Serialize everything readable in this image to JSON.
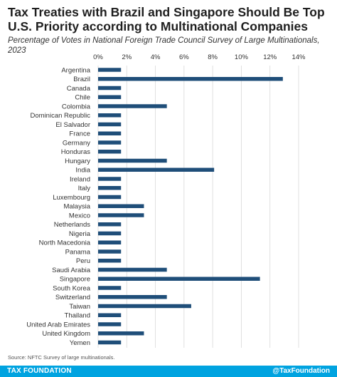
{
  "title": "Tax Treaties with Brazil and Singapore Should Be Top U.S. Priority according to Multinational Companies",
  "subtitle": "Percentage of Votes in National Foreign Trade Council Survey of Large Multinationals, 2023",
  "source": "Source: NFTC Survey of large multinationals.",
  "footer": {
    "brand": "TAX FOUNDATION",
    "handle": "@TaxFoundation"
  },
  "colors": {
    "bar": "#1f4e79",
    "grid": "#d9d9d9",
    "footer": "#00a3e0"
  },
  "chart_data": {
    "type": "bar",
    "orientation": "horizontal",
    "title": "Tax Treaties with Brazil and Singapore Should Be Top U.S. Priority according to Multinational Companies",
    "subtitle": "Percentage of Votes in National Foreign Trade Council Survey of Large Multinationals, 2023",
    "xlim": [
      0,
      14
    ],
    "ticks": [
      0,
      2,
      4,
      6,
      8,
      10,
      12,
      14
    ],
    "tick_labels": [
      "0%",
      "2%",
      "4%",
      "6%",
      "8%",
      "10%",
      "12%",
      "14%"
    ],
    "grid": true,
    "categories": [
      "Argentina",
      "Brazil",
      "Canada",
      "Chile",
      "Colombia",
      "Dominican Republic",
      "El Salvador",
      "France",
      "Germany",
      "Honduras",
      "Hungary",
      "India",
      "Ireland",
      "Italy",
      "Luxembourg",
      "Malaysia",
      "Mexico",
      "Netherlands",
      "Nigeria",
      "North Macedonia",
      "Panama",
      "Peru",
      "Saudi Arabia",
      "Singapore",
      "South Korea",
      "Switzerland",
      "Taiwan",
      "Thailand",
      "United Arab Emirates",
      "United Kingdom",
      "Yemen"
    ],
    "values": [
      1.6,
      12.9,
      1.6,
      1.6,
      4.8,
      1.6,
      1.6,
      1.6,
      1.6,
      1.6,
      4.8,
      8.1,
      1.6,
      1.6,
      1.6,
      3.2,
      3.2,
      1.6,
      1.6,
      1.6,
      1.6,
      1.6,
      4.8,
      11.3,
      1.6,
      4.8,
      6.5,
      1.6,
      1.6,
      3.2,
      1.6
    ]
  }
}
